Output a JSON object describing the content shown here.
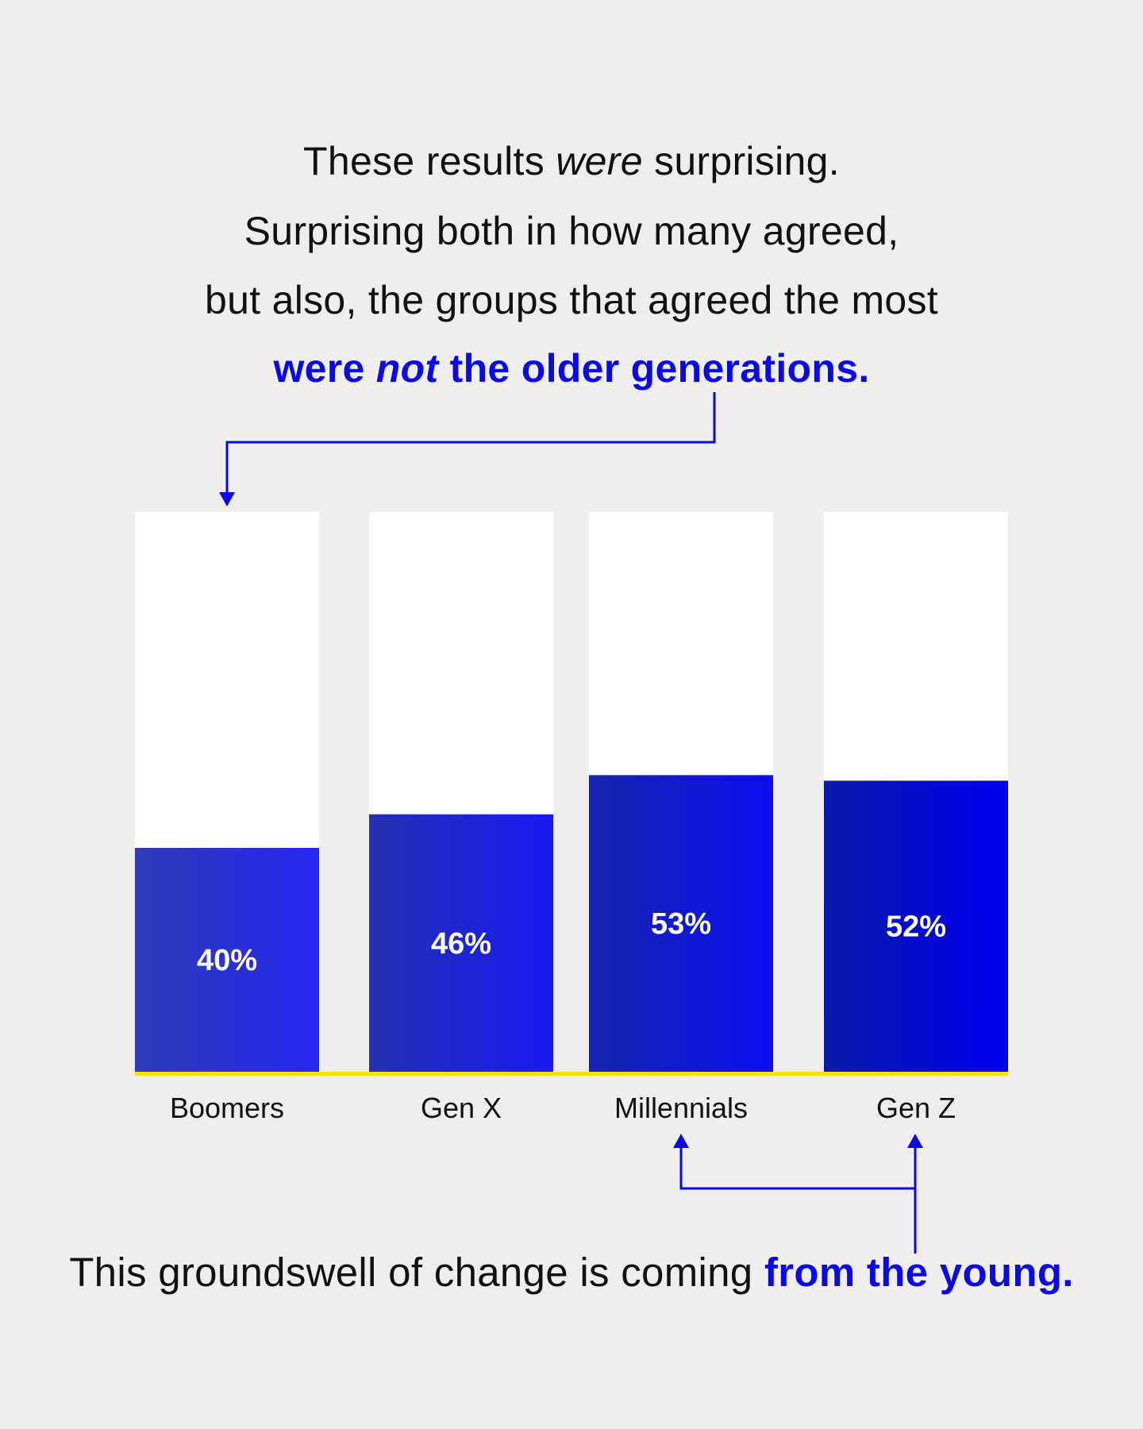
{
  "headline": {
    "line1_a": "These results ",
    "line1_em": "were",
    "line1_b": " surprising.",
    "line2": "Surprising both in how many agreed,",
    "line3": "but also, the groups that agreed the most",
    "line4_a": "were ",
    "line4_em": "not",
    "line4_b": " the older generations."
  },
  "footer": {
    "text": "This groundswell of change is coming ",
    "highlight": "from the young."
  },
  "colors": {
    "accent": "#0a0ae6",
    "bar_dark": "#0a1aa8",
    "bar_light": "#0000f0",
    "baseline": "#f5e200",
    "track": "#ffffff"
  },
  "chart_data": {
    "type": "bar",
    "categories": [
      "Boomers",
      "Gen X",
      "Millennials",
      "Gen Z"
    ],
    "values": [
      40,
      46,
      53,
      52
    ],
    "labels": [
      "40%",
      "46%",
      "53%",
      "52%"
    ],
    "ylim": [
      0,
      100
    ],
    "grid": false
  }
}
